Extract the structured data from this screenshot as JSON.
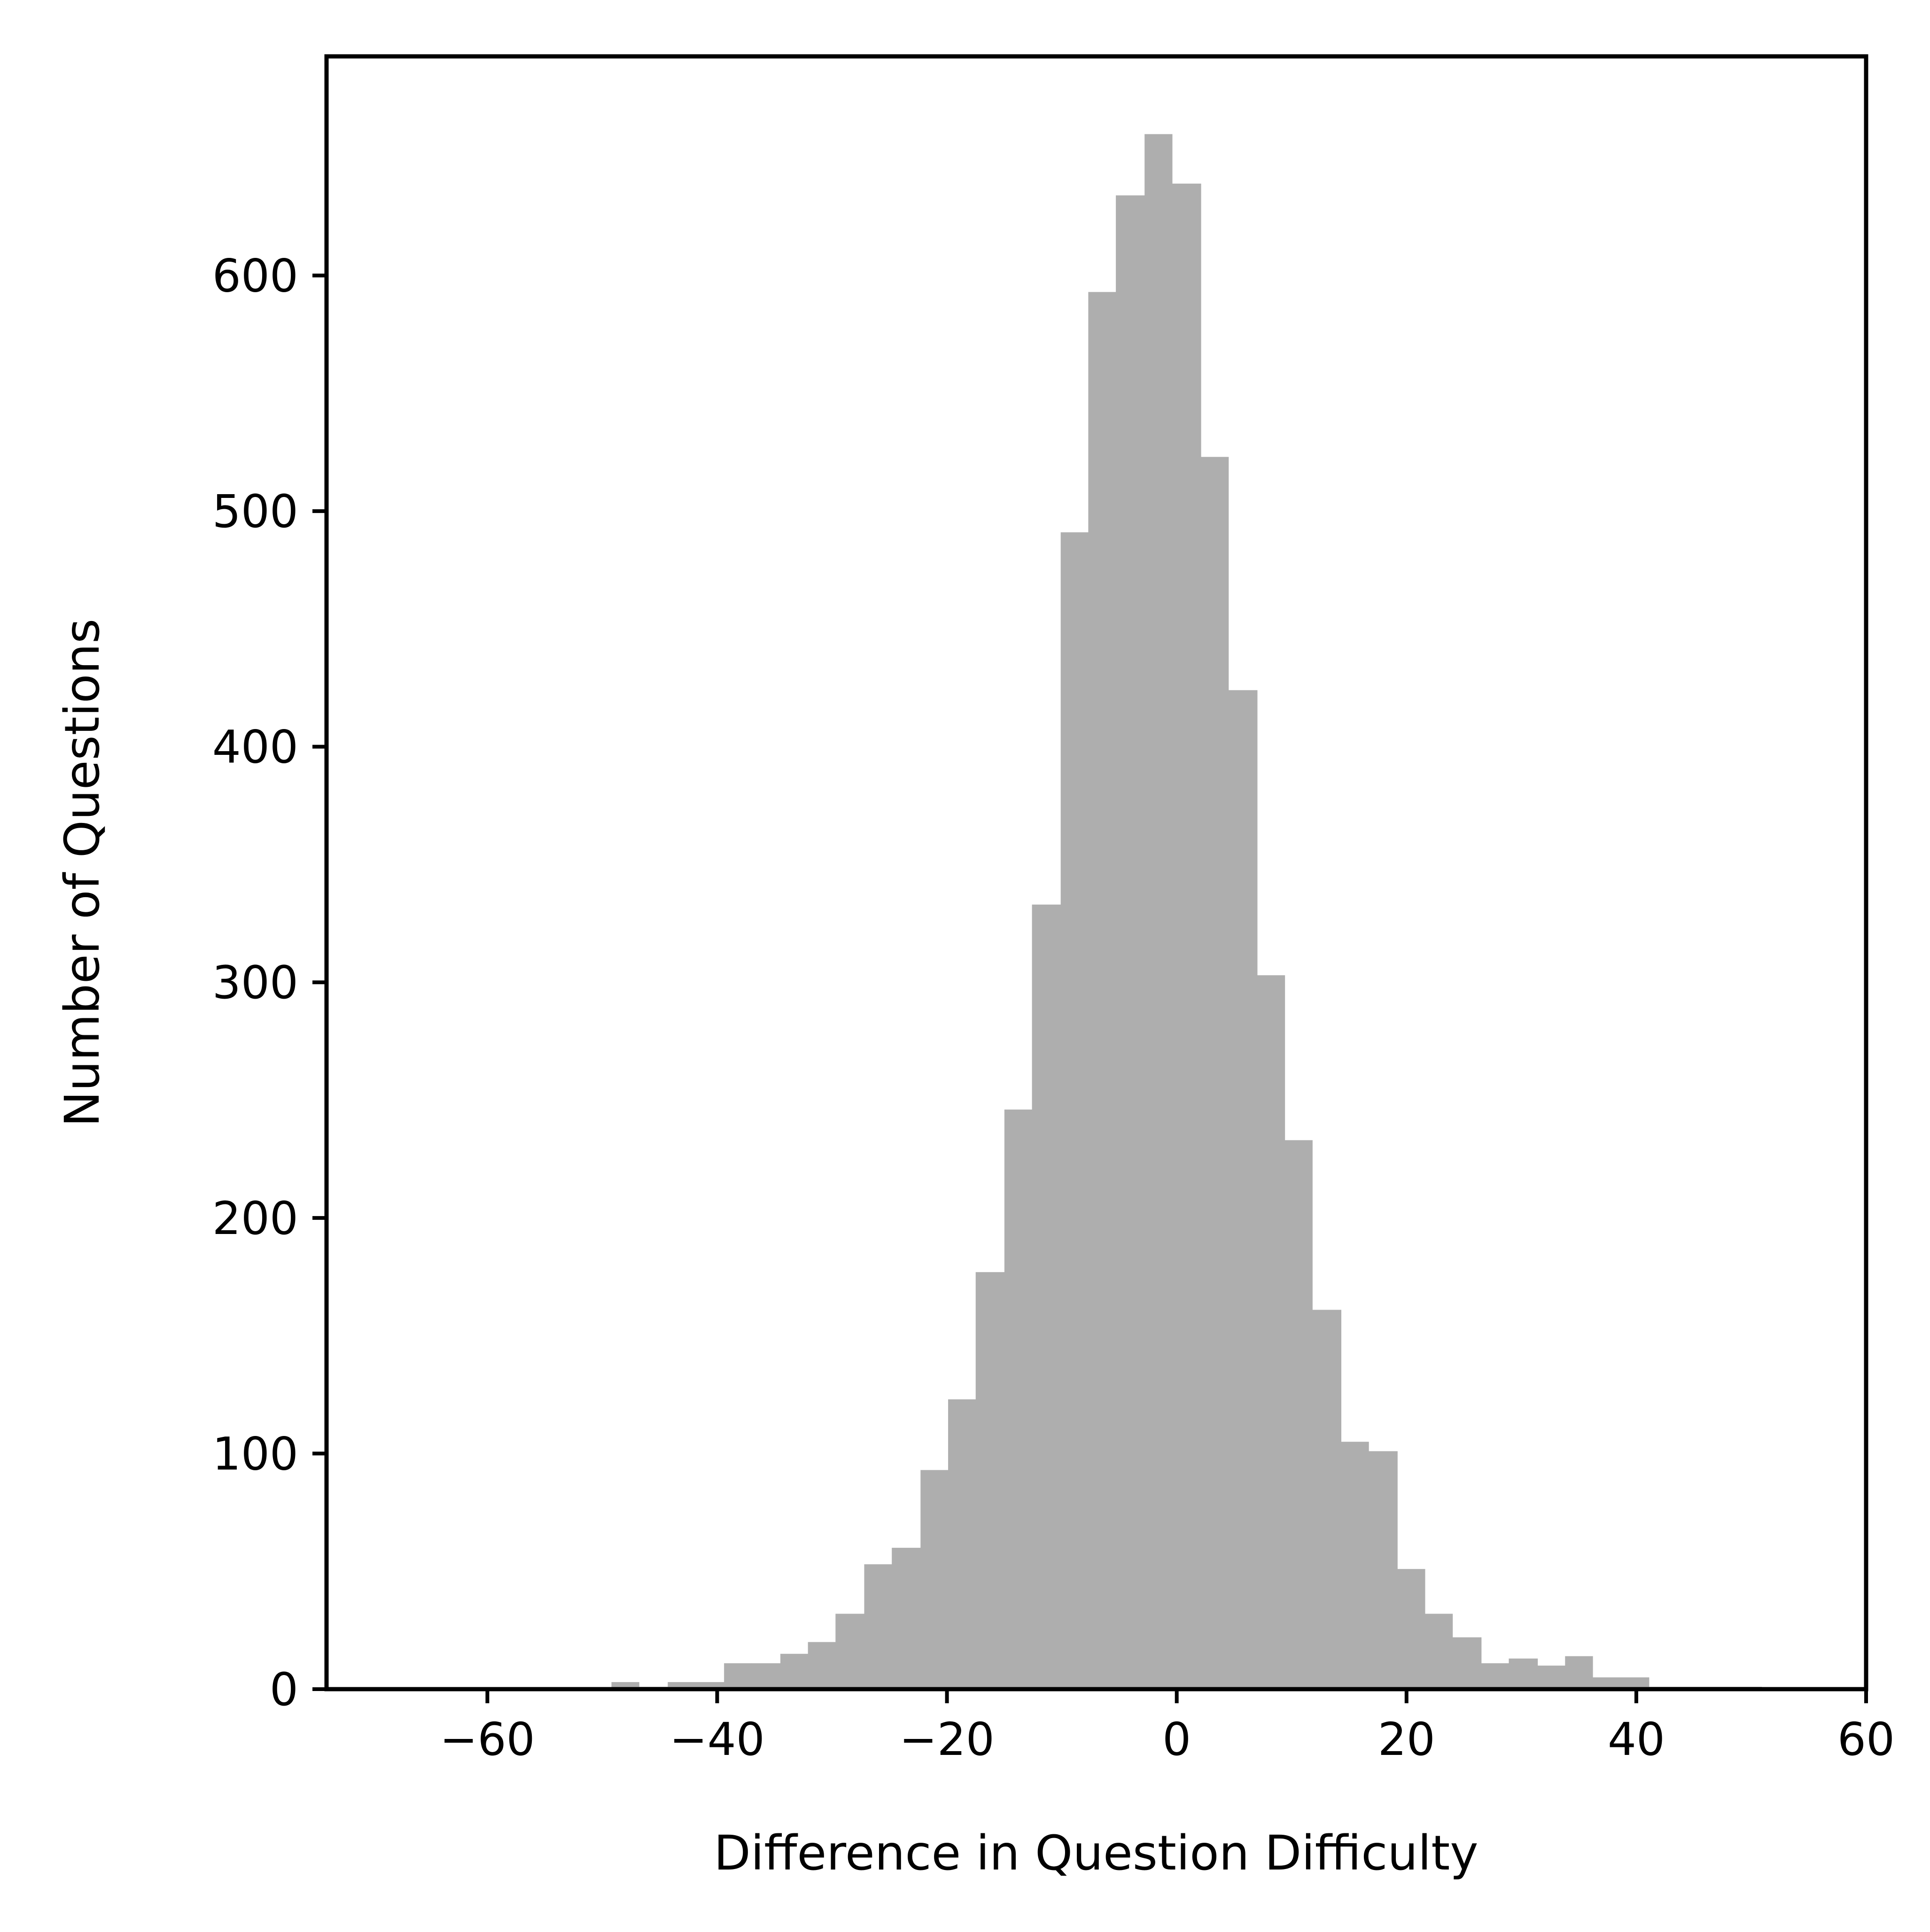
{
  "chart_data": {
    "type": "bar",
    "subtype": "histogram",
    "title": "",
    "xlabel": "Difference in Question Difficulty",
    "ylabel": "Number of Questions",
    "xlim": [
      -74,
      60
    ],
    "ylim": [
      0,
      693
    ],
    "x_ticks": [
      -60,
      -40,
      -20,
      0,
      20,
      40,
      60
    ],
    "x_tick_labels": [
      "−60",
      "−40",
      "−20",
      "0",
      "20",
      "40",
      "60"
    ],
    "y_ticks": [
      0,
      100,
      200,
      300,
      400,
      500,
      600
    ],
    "y_tick_labels": [
      "0",
      "100",
      "200",
      "300",
      "400",
      "500",
      "600"
    ],
    "grid": false,
    "bar_color": "#aeaeae",
    "bins": [
      {
        "x0": -61.4,
        "x1": -59.0,
        "count": 0
      },
      {
        "x0": -59.0,
        "x1": -56.5,
        "count": 0
      },
      {
        "x0": -56.5,
        "x1": -54.1,
        "count": 0
      },
      {
        "x0": -54.1,
        "x1": -51.6,
        "count": 0
      },
      {
        "x0": -51.6,
        "x1": -49.2,
        "count": 0
      },
      {
        "x0": -49.2,
        "x1": -46.8,
        "count": 3
      },
      {
        "x0": -46.8,
        "x1": -44.3,
        "count": 1
      },
      {
        "x0": -44.3,
        "x1": -41.9,
        "count": 3
      },
      {
        "x0": -41.9,
        "x1": -39.4,
        "count": 3
      },
      {
        "x0": -39.4,
        "x1": -37.0,
        "count": 11
      },
      {
        "x0": -37.0,
        "x1": -34.5,
        "count": 11
      },
      {
        "x0": -34.5,
        "x1": -32.1,
        "count": 15
      },
      {
        "x0": -32.1,
        "x1": -29.7,
        "count": 20
      },
      {
        "x0": -29.7,
        "x1": -27.2,
        "count": 32
      },
      {
        "x0": -27.2,
        "x1": -24.8,
        "count": 53
      },
      {
        "x0": -24.8,
        "x1": -22.3,
        "count": 60
      },
      {
        "x0": -22.3,
        "x1": -19.9,
        "count": 93
      },
      {
        "x0": -19.9,
        "x1": -17.5,
        "count": 123
      },
      {
        "x0": -17.5,
        "x1": -15.0,
        "count": 177
      },
      {
        "x0": -15.0,
        "x1": -12.6,
        "count": 246
      },
      {
        "x0": -12.6,
        "x1": -10.1,
        "count": 333
      },
      {
        "x0": -10.1,
        "x1": -7.7,
        "count": 491
      },
      {
        "x0": -7.7,
        "x1": -5.3,
        "count": 593
      },
      {
        "x0": -5.3,
        "x1": -2.8,
        "count": 634
      },
      {
        "x0": -2.8,
        "x1": -0.4,
        "count": 660
      },
      {
        "x0": -0.4,
        "x1": 2.1,
        "count": 639
      },
      {
        "x0": 2.1,
        "x1": 4.5,
        "count": 523
      },
      {
        "x0": 4.5,
        "x1": 7.0,
        "count": 424
      },
      {
        "x0": 7.0,
        "x1": 9.4,
        "count": 303
      },
      {
        "x0": 9.4,
        "x1": 11.8,
        "count": 233
      },
      {
        "x0": 11.8,
        "x1": 14.3,
        "count": 161
      },
      {
        "x0": 14.3,
        "x1": 16.7,
        "count": 105
      },
      {
        "x0": 16.7,
        "x1": 19.2,
        "count": 101
      },
      {
        "x0": 19.2,
        "x1": 21.6,
        "count": 51
      },
      {
        "x0": 21.6,
        "x1": 24.0,
        "count": 32
      },
      {
        "x0": 24.0,
        "x1": 26.5,
        "count": 22
      },
      {
        "x0": 26.5,
        "x1": 28.9,
        "count": 11
      },
      {
        "x0": 28.9,
        "x1": 31.4,
        "count": 13
      },
      {
        "x0": 31.4,
        "x1": 33.8,
        "count": 10
      },
      {
        "x0": 33.8,
        "x1": 36.2,
        "count": 14
      },
      {
        "x0": 36.2,
        "x1": 38.7,
        "count": 5
      },
      {
        "x0": 38.7,
        "x1": 41.1,
        "count": 5
      },
      {
        "x0": 41.1,
        "x1": 43.6,
        "count": 1
      },
      {
        "x0": 43.6,
        "x1": 46.0,
        "count": 1
      },
      {
        "x0": 46.0,
        "x1": 48.5,
        "count": 1
      },
      {
        "x0": 48.5,
        "x1": 50.9,
        "count": 1
      }
    ]
  }
}
